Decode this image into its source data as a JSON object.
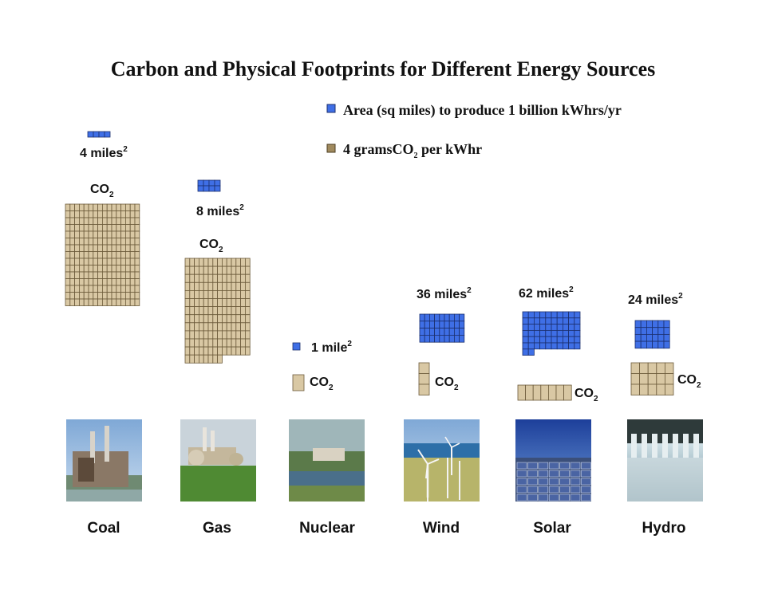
{
  "chart_data": {
    "type": "pictogram",
    "title": "Carbon and Physical Footprints for Different Energy Sources",
    "legend": [
      {
        "key": "area",
        "label": "Area (sq miles) to produce 1 billion kWhrs/yr",
        "color": "#3f6fe6"
      },
      {
        "key": "co2",
        "label": "4 gramsCO",
        "sub": "2",
        "tail": " per kWhr",
        "color": "#a08a5e"
      }
    ],
    "co2_text": "CO",
    "co2_sub": "2",
    "area_unit_plural": "miles",
    "area_unit_singular": "mile",
    "area_unit_sup": "2",
    "categories": [
      "Coal",
      "Gas",
      "Nuclear",
      "Wind",
      "Solar",
      "Hydro"
    ],
    "series": [
      {
        "name": "Area (sq miles) to produce 1 billion kWhrs/yr",
        "values": [
          4,
          8,
          1,
          36,
          62,
          24
        ]
      },
      {
        "name": "4 gramsCO2 per kWhr",
        "unit_grams_per_square": 4,
        "squares": [
          240,
          176,
          1,
          3,
          7,
          15
        ]
      }
    ],
    "photos": [
      {
        "category": "Coal",
        "scene": "coal-power-plant"
      },
      {
        "category": "Gas",
        "scene": "gas-power-plant"
      },
      {
        "category": "Nuclear",
        "scene": "nuclear-power-plant"
      },
      {
        "category": "Wind",
        "scene": "wind-farm"
      },
      {
        "category": "Solar",
        "scene": "solar-panel-field"
      },
      {
        "category": "Hydro",
        "scene": "hydro-dam"
      }
    ]
  }
}
